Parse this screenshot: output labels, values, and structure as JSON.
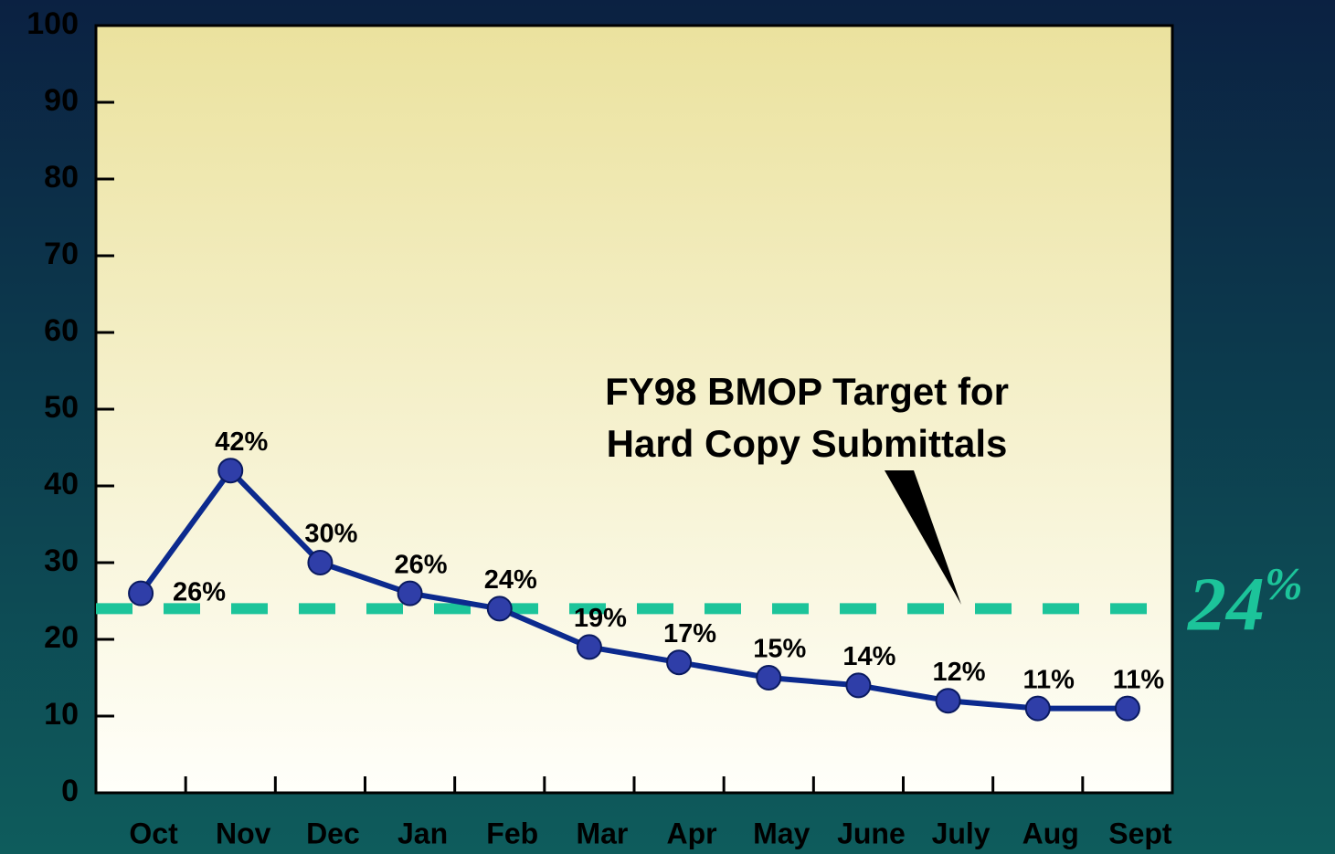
{
  "chart_data": {
    "type": "line",
    "categories": [
      "Oct",
      "Nov",
      "Dec",
      "Jan",
      "Feb",
      "Mar",
      "Apr",
      "May",
      "June",
      "July",
      "Aug",
      "Sept"
    ],
    "values": [
      26,
      42,
      30,
      26,
      24,
      19,
      17,
      15,
      14,
      12,
      11,
      11
    ],
    "value_labels": [
      "26%",
      "42%",
      "30%",
      "26%",
      "24%",
      "19%",
      "17%",
      "15%",
      "14%",
      "12%",
      "11%",
      "11%"
    ],
    "color": "#0c2a8e",
    "marker_color": "#2f3ea8",
    "ylim": [
      0,
      100
    ],
    "yticks": [
      0,
      10,
      20,
      30,
      40,
      50,
      60,
      70,
      80,
      90,
      100
    ],
    "target": {
      "value": 24,
      "label": "24%",
      "color": "#1cc49a"
    },
    "annotation": [
      "FY98 BMOP Target for",
      "Hard Copy Submittals"
    ]
  }
}
